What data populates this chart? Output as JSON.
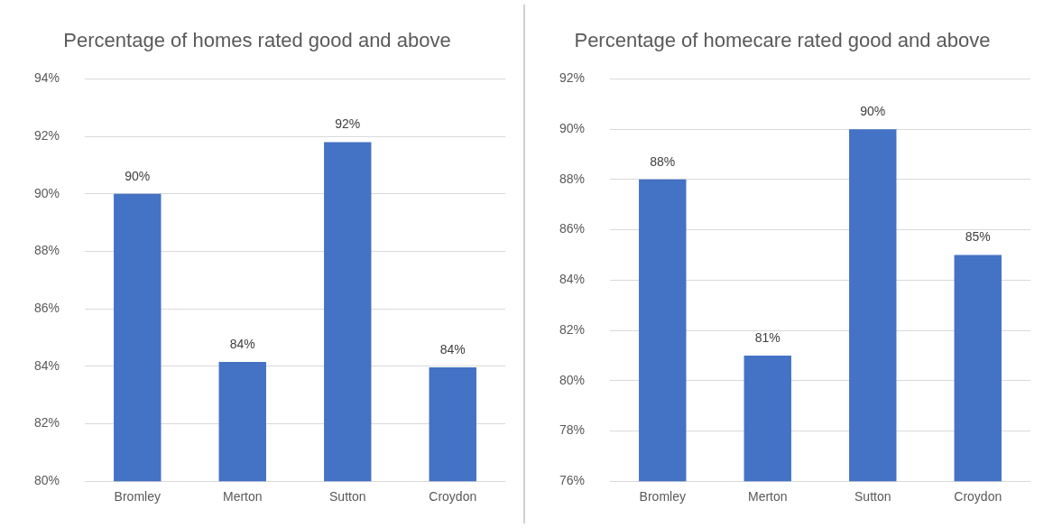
{
  "chart_data": [
    {
      "type": "bar",
      "title": "Percentage of homes rated good and above",
      "categories": [
        "Bromley",
        "Merton",
        "Sutton",
        "Croydon"
      ],
      "values": [
        90,
        84.15,
        91.8,
        83.96
      ],
      "value_labels": [
        "90%",
        "84%",
        "92%",
        "84%"
      ],
      "color": "#4472c4",
      "ylim": [
        80,
        94
      ],
      "yticks": [
        {
          "value": 80,
          "label": "80%"
        },
        {
          "value": 82,
          "label": "82%"
        },
        {
          "value": 84,
          "label": "84%"
        },
        {
          "value": 86,
          "label": "86%"
        },
        {
          "value": 88,
          "label": "88%"
        },
        {
          "value": 90,
          "label": "90%"
        },
        {
          "value": 92,
          "label": "92%"
        },
        {
          "value": 94,
          "label": "94%"
        }
      ],
      "grid": "y",
      "legend": false
    },
    {
      "type": "bar",
      "title": "Percentage of homecare rated good and above",
      "categories": [
        "Bromley",
        "Merton",
        "Sutton",
        "Croydon"
      ],
      "values": [
        88,
        81,
        90,
        85
      ],
      "value_labels": [
        "88%",
        "81%",
        "90%",
        "85%"
      ],
      "color": "#4472c4",
      "ylim": [
        76,
        92
      ],
      "yticks": [
        {
          "value": 76,
          "label": "76%"
        },
        {
          "value": 78,
          "label": "78%"
        },
        {
          "value": 80,
          "label": "80%"
        },
        {
          "value": 82,
          "label": "82%"
        },
        {
          "value": 84,
          "label": "84%"
        },
        {
          "value": 86,
          "label": "86%"
        },
        {
          "value": 88,
          "label": "88%"
        },
        {
          "value": 90,
          "label": "90%"
        },
        {
          "value": 92,
          "label": "92%"
        }
      ],
      "grid": "y",
      "legend": false
    }
  ]
}
